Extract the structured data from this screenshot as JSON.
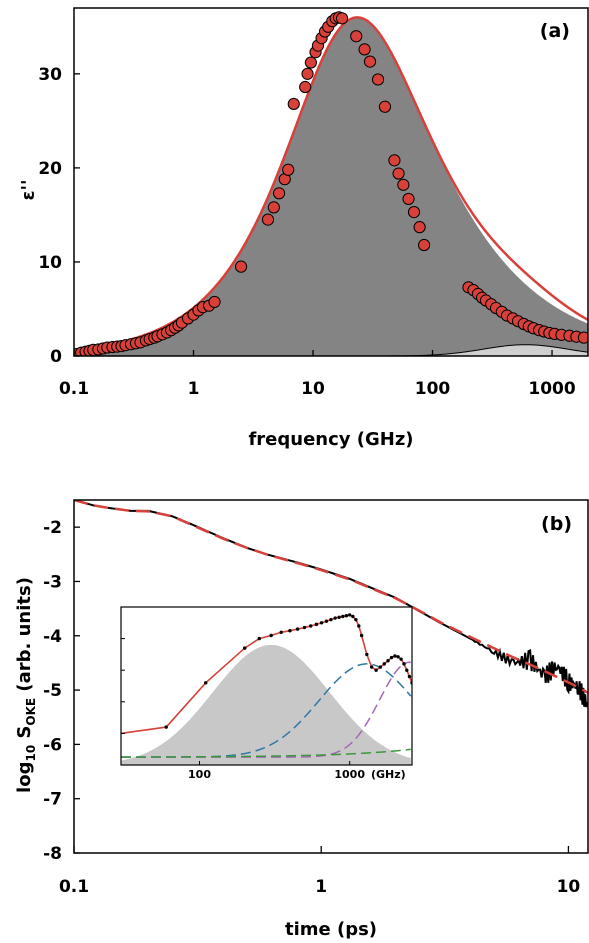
{
  "chart_data": [
    {
      "panel_label": "(a)",
      "type": "scatter",
      "xscale": "log",
      "xlim": [
        0.1,
        2000
      ],
      "ylim": [
        0,
        37
      ],
      "xticks": [
        0.1,
        1,
        10,
        100,
        1000
      ],
      "xtick_labels": [
        "0.1",
        "1",
        "10",
        "100",
        "1000"
      ],
      "yticks": [
        0,
        10,
        20,
        30
      ],
      "ytick_labels": [
        "0",
        "10",
        "20",
        "30"
      ],
      "xlabel": "frequency (GHz)",
      "ylabel": "ε''",
      "colors": {
        "points": "#d8403a",
        "fit": "#d8403a",
        "main_fill": "#848484",
        "minor_fill": "#cfcfcf"
      },
      "series": [
        {
          "kind": "points",
          "x": [
            0.105,
            0.115,
            0.125,
            0.135,
            0.145,
            0.16,
            0.175,
            0.19,
            0.21,
            0.23,
            0.25,
            0.27,
            0.3,
            0.33,
            0.36,
            0.4,
            0.43,
            0.47,
            0.5,
            0.55,
            0.6,
            0.65,
            0.7,
            0.75,
            0.8,
            0.9,
            1.0,
            1.1,
            1.2,
            1.35,
            1.5,
            2.5,
            4.2,
            4.7,
            5.2,
            5.8,
            6.2,
            6.9,
            8.6,
            9.0,
            9.6,
            10.5,
            11.0,
            11.8,
            12.6,
            13.4,
            14.5,
            15.5,
            16.5,
            17.5,
            23,
            27,
            30,
            35,
            40,
            48,
            52,
            57,
            63,
            70,
            78,
            85,
            200,
            220,
            240,
            260,
            280,
            310,
            340,
            380,
            420,
            470,
            520,
            580,
            640,
            700,
            780,
            860,
            950,
            1050,
            1200,
            1400,
            1600,
            1850
          ],
          "y": [
            0.2,
            0.35,
            0.45,
            0.55,
            0.65,
            0.7,
            0.8,
            0.9,
            0.95,
            1.0,
            1.05,
            1.15,
            1.25,
            1.35,
            1.45,
            1.65,
            1.8,
            1.95,
            2.1,
            2.3,
            2.5,
            2.75,
            3.0,
            3.25,
            3.55,
            4.0,
            4.4,
            4.85,
            5.2,
            5.35,
            5.75,
            9.5,
            14.5,
            15.8,
            17.3,
            18.8,
            19.8,
            26.8,
            28.6,
            30.0,
            31.2,
            32.3,
            33.0,
            33.8,
            34.5,
            35.0,
            35.6,
            35.9,
            36.0,
            35.9,
            34.0,
            32.6,
            31.3,
            29.4,
            26.5,
            20.8,
            19.4,
            18.2,
            16.7,
            15.3,
            13.7,
            11.8,
            7.3,
            7.0,
            6.6,
            6.2,
            5.9,
            5.5,
            5.1,
            4.7,
            4.3,
            4.0,
            3.7,
            3.4,
            3.15,
            2.95,
            2.75,
            2.6,
            2.45,
            2.35,
            2.25,
            2.15,
            2.05,
            1.95
          ]
        },
        {
          "kind": "fit_line",
          "model": "havriliak-negami",
          "peak_x": 18,
          "peak_y": 36
        },
        {
          "kind": "filled_component",
          "peak_x": 18,
          "peak_y": 36
        },
        {
          "kind": "minor_component",
          "peak_x": 600,
          "peak_y": 1.2
        }
      ]
    },
    {
      "panel_label": "(b)",
      "type": "line",
      "xscale": "log",
      "xlim": [
        0.1,
        12
      ],
      "ylim": [
        -8,
        -1.5
      ],
      "xticks": [
        0.1,
        1,
        10
      ],
      "xtick_labels": [
        "0.1",
        "1",
        "10"
      ],
      "yticks": [
        -2,
        -3,
        -4,
        -5,
        -6,
        -7,
        -8
      ],
      "ytick_labels": [
        "-2",
        "-3",
        "-4",
        "-5",
        "-6",
        "-7",
        "-8"
      ],
      "xlabel": "time (ps)",
      "ylabel": "log₁₀ Sₒₖₑ (arb. units)",
      "ylabel_parts": {
        "prefix": "log",
        "sub1": "10",
        "mid": " S",
        "sub2": "OKE",
        "suffix": " (arb. units)"
      },
      "colors": {
        "data": "#000000",
        "fit": "#d8403a"
      },
      "series": [
        {
          "kind": "data_line",
          "x": [
            0.1,
            0.12,
            0.14,
            0.17,
            0.2,
            0.25,
            0.3,
            0.4,
            0.5,
            0.6,
            0.8,
            1.0,
            1.3,
            1.6,
            2.0,
            2.5,
            3.0,
            4.0,
            5.0,
            6.0,
            7.0,
            8.0,
            9.0,
            10.0,
            11.0,
            12.0
          ],
          "y": [
            -1.5,
            -1.6,
            -1.65,
            -1.7,
            -1.7,
            -1.8,
            -1.95,
            -2.2,
            -2.38,
            -2.5,
            -2.65,
            -2.78,
            -2.95,
            -3.12,
            -3.3,
            -3.55,
            -3.75,
            -4.05,
            -4.3,
            -4.5,
            -4.45,
            -4.75,
            -4.55,
            -4.85,
            -4.95,
            -5.3
          ]
        },
        {
          "kind": "fit_line",
          "x": [
            0.1,
            0.12,
            0.14,
            0.17,
            0.2,
            0.25,
            0.3,
            0.4,
            0.5,
            0.6,
            0.8,
            1.0,
            1.3,
            1.6,
            2.0,
            2.5,
            3.0,
            4.0,
            5.0,
            6.0,
            7.0,
            8.0,
            9.0,
            10.0,
            11.0,
            12.0
          ],
          "y": [
            -1.5,
            -1.6,
            -1.65,
            -1.7,
            -1.71,
            -1.8,
            -1.96,
            -2.21,
            -2.38,
            -2.5,
            -2.66,
            -2.79,
            -2.96,
            -3.13,
            -3.31,
            -3.54,
            -3.74,
            -4.02,
            -4.23,
            -4.4,
            -4.53,
            -4.65,
            -4.76,
            -4.86,
            -4.95,
            -5.05
          ]
        }
      ],
      "inset": {
        "xscale": "log",
        "xlim": [
          30,
          2600
        ],
        "xticks": [
          100,
          1000
        ],
        "xtick_labels": [
          "100",
          "1000"
        ],
        "x_unit_label": "(GHz)",
        "colors": {
          "total": "#d8403a",
          "points": "#000000",
          "gray_fill": "#c8c8c8",
          "blue": "#2f78a8",
          "purple": "#a665b8",
          "green": "#3a9a3a"
        },
        "points": {
          "x": [
            60,
            110,
            200,
            250,
            300,
            350,
            400,
            450,
            500,
            550,
            600,
            650,
            700,
            750,
            800,
            850,
            900,
            950,
            1000,
            1050,
            1100,
            1150,
            1200,
            1300,
            1400,
            1500,
            1600,
            1700,
            1800,
            1900,
            2000,
            2100,
            2200,
            2300,
            2400,
            2500,
            2600
          ],
          "y": [
            0.24,
            0.52,
            0.74,
            0.8,
            0.82,
            0.84,
            0.85,
            0.86,
            0.87,
            0.88,
            0.89,
            0.9,
            0.91,
            0.92,
            0.93,
            0.935,
            0.94,
            0.945,
            0.95,
            0.94,
            0.92,
            0.88,
            0.82,
            0.7,
            0.62,
            0.6,
            0.62,
            0.64,
            0.66,
            0.68,
            0.69,
            0.685,
            0.67,
            0.64,
            0.6,
            0.56,
            0.52
          ]
        }
      }
    }
  ]
}
